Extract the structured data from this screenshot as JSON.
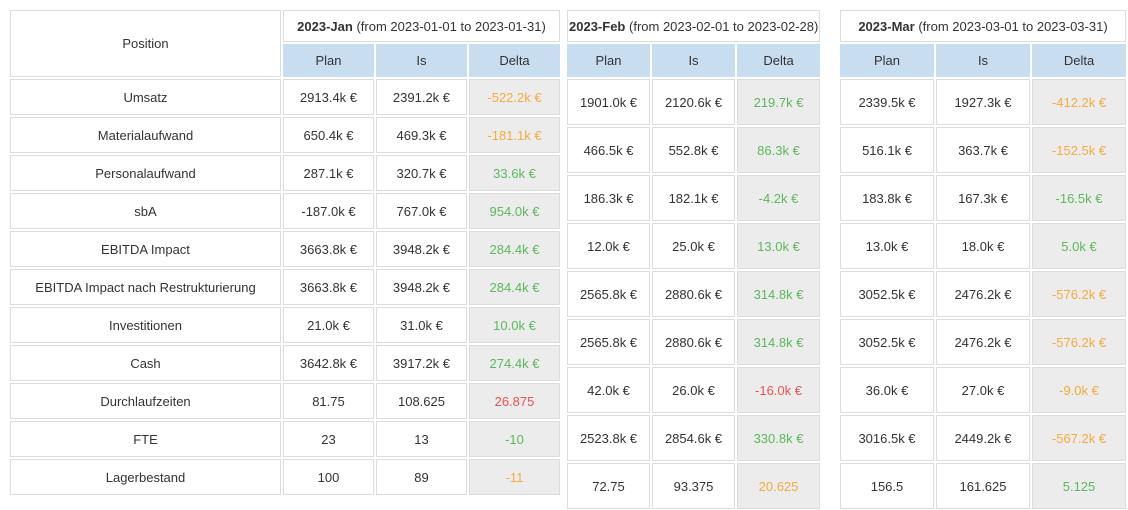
{
  "header": {
    "position": "Position",
    "columns": [
      "Plan",
      "Is",
      "Delta"
    ]
  },
  "months": [
    {
      "label": "2023-Jan",
      "range": "(from 2023-01-01 to 2023-01-31)"
    },
    {
      "label": "2023-Feb",
      "range": "(from 2023-02-01 to 2023-02-28)"
    },
    {
      "label": "2023-Mar",
      "range": "(from 2023-03-01 to 2023-03-31)"
    }
  ],
  "positions": [
    "Umsatz",
    "Materialaufwand",
    "Personalaufwand",
    "sbA",
    "EBITDA Impact",
    "EBITDA Impact nach Restrukturierung",
    "Investitionen",
    "Cash",
    "Durchlaufzeiten",
    "FTE",
    "Lagerbestand"
  ],
  "jan": {
    "rows": [
      {
        "plan": "2913.4k €",
        "is": "2391.2k €",
        "delta": "-522.2k €",
        "delta_color": "orange"
      },
      {
        "plan": "650.4k €",
        "is": "469.3k €",
        "delta": "-181.1k €",
        "delta_color": "orange"
      },
      {
        "plan": "287.1k €",
        "is": "320.7k €",
        "delta": "33.6k €",
        "delta_color": "green"
      },
      {
        "plan": "-187.0k €",
        "is": "767.0k €",
        "delta": "954.0k €",
        "delta_color": "green"
      },
      {
        "plan": "3663.8k €",
        "is": "3948.2k €",
        "delta": "284.4k €",
        "delta_color": "green"
      },
      {
        "plan": "3663.8k €",
        "is": "3948.2k €",
        "delta": "284.4k €",
        "delta_color": "green"
      },
      {
        "plan": "21.0k €",
        "is": "31.0k €",
        "delta": "10.0k €",
        "delta_color": "green"
      },
      {
        "plan": "3642.8k €",
        "is": "3917.2k €",
        "delta": "274.4k €",
        "delta_color": "green"
      },
      {
        "plan": "81.75",
        "is": "108.625",
        "delta": "26.875",
        "delta_color": "red"
      },
      {
        "plan": "23",
        "is": "13",
        "delta": "-10",
        "delta_color": "green"
      },
      {
        "plan": "100",
        "is": "89",
        "delta": "-11",
        "delta_color": "orange"
      }
    ]
  },
  "feb": {
    "rows": [
      {
        "plan": "1901.0k €",
        "is": "2120.6k €",
        "delta": "219.7k €",
        "delta_color": "green"
      },
      {
        "plan": "466.5k €",
        "is": "552.8k €",
        "delta": "86.3k €",
        "delta_color": "green"
      },
      {
        "plan": "186.3k €",
        "is": "182.1k €",
        "delta": "-4.2k €",
        "delta_color": "green"
      },
      {
        "plan": "12.0k €",
        "is": "25.0k €",
        "delta": "13.0k €",
        "delta_color": "green"
      },
      {
        "plan": "2565.8k €",
        "is": "2880.6k €",
        "delta": "314.8k €",
        "delta_color": "green"
      },
      {
        "plan": "2565.8k €",
        "is": "2880.6k €",
        "delta": "314.8k €",
        "delta_color": "green"
      },
      {
        "plan": "42.0k €",
        "is": "26.0k €",
        "delta": "-16.0k €",
        "delta_color": "red"
      },
      {
        "plan": "2523.8k €",
        "is": "2854.6k €",
        "delta": "330.8k €",
        "delta_color": "green"
      },
      {
        "plan": "72.75",
        "is": "93.375",
        "delta": "20.625",
        "delta_color": "orange"
      }
    ]
  },
  "mar": {
    "rows": [
      {
        "plan": "2339.5k €",
        "is": "1927.3k €",
        "delta": "-412.2k €",
        "delta_color": "orange"
      },
      {
        "plan": "516.1k €",
        "is": "363.7k €",
        "delta": "-152.5k €",
        "delta_color": "orange"
      },
      {
        "plan": "183.8k €",
        "is": "167.3k €",
        "delta": "-16.5k €",
        "delta_color": "green"
      },
      {
        "plan": "13.0k €",
        "is": "18.0k €",
        "delta": "5.0k €",
        "delta_color": "green"
      },
      {
        "plan": "3052.5k €",
        "is": "2476.2k €",
        "delta": "-576.2k €",
        "delta_color": "orange"
      },
      {
        "plan": "3052.5k €",
        "is": "2476.2k €",
        "delta": "-576.2k €",
        "delta_color": "orange"
      },
      {
        "plan": "36.0k €",
        "is": "27.0k €",
        "delta": "-9.0k €",
        "delta_color": "orange"
      },
      {
        "plan": "3016.5k €",
        "is": "2449.2k €",
        "delta": "-567.2k €",
        "delta_color": "orange"
      },
      {
        "plan": "156.5",
        "is": "161.625",
        "delta": "5.125",
        "delta_color": "green"
      }
    ]
  },
  "colors": {
    "green": "#5cb85c",
    "orange": "#f5ab3d",
    "red": "#e9544d",
    "header_blue": "#c9ddf1",
    "delta_bg": "#ececec",
    "border": "#dcdcdc",
    "text": "#333333"
  }
}
